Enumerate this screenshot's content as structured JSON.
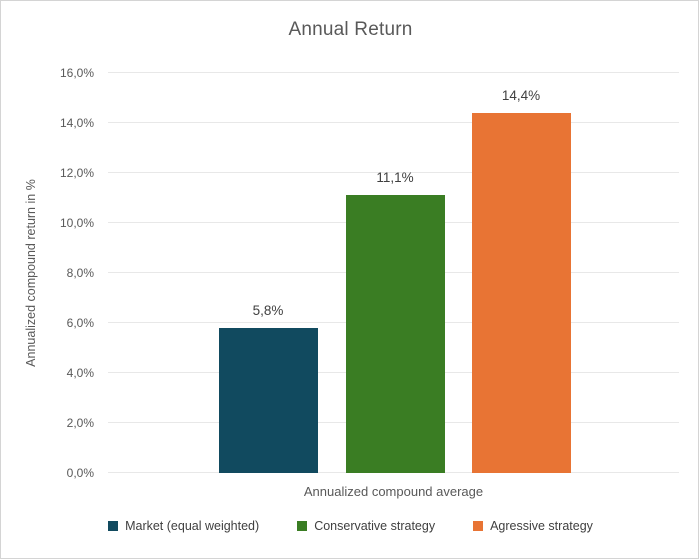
{
  "chart_data": {
    "type": "bar",
    "title": "Annual Return",
    "xlabel": "Annualized compound average",
    "ylabel": "Annualized compound return in %",
    "categories": [
      "Annualized compound average"
    ],
    "series": [
      {
        "name": "Market (equal weighted)",
        "value": 5.8,
        "data_label": "5,8%",
        "color": "#114a5f"
      },
      {
        "name": "Conservative strategy",
        "value": 11.1,
        "data_label": "11,1%",
        "color": "#3a7d23"
      },
      {
        "name": "Agressive strategy",
        "value": 14.4,
        "data_label": "14,4%",
        "color": "#e87434"
      }
    ],
    "ylim": [
      0,
      16
    ],
    "ytick_step": 2,
    "ytick_labels": [
      "0,0%",
      "2,0%",
      "4,0%",
      "6,0%",
      "8,0%",
      "10,0%",
      "12,0%",
      "14,0%",
      "16,0%"
    ],
    "grid": true,
    "legend_position": "bottom"
  },
  "colors": {
    "title_text": "#595959",
    "axis_text": "#595959",
    "data_label_text": "#404040",
    "gridline": "#e8e8e8",
    "frame_border": "#d4d4d4",
    "background": "#ffffff"
  }
}
